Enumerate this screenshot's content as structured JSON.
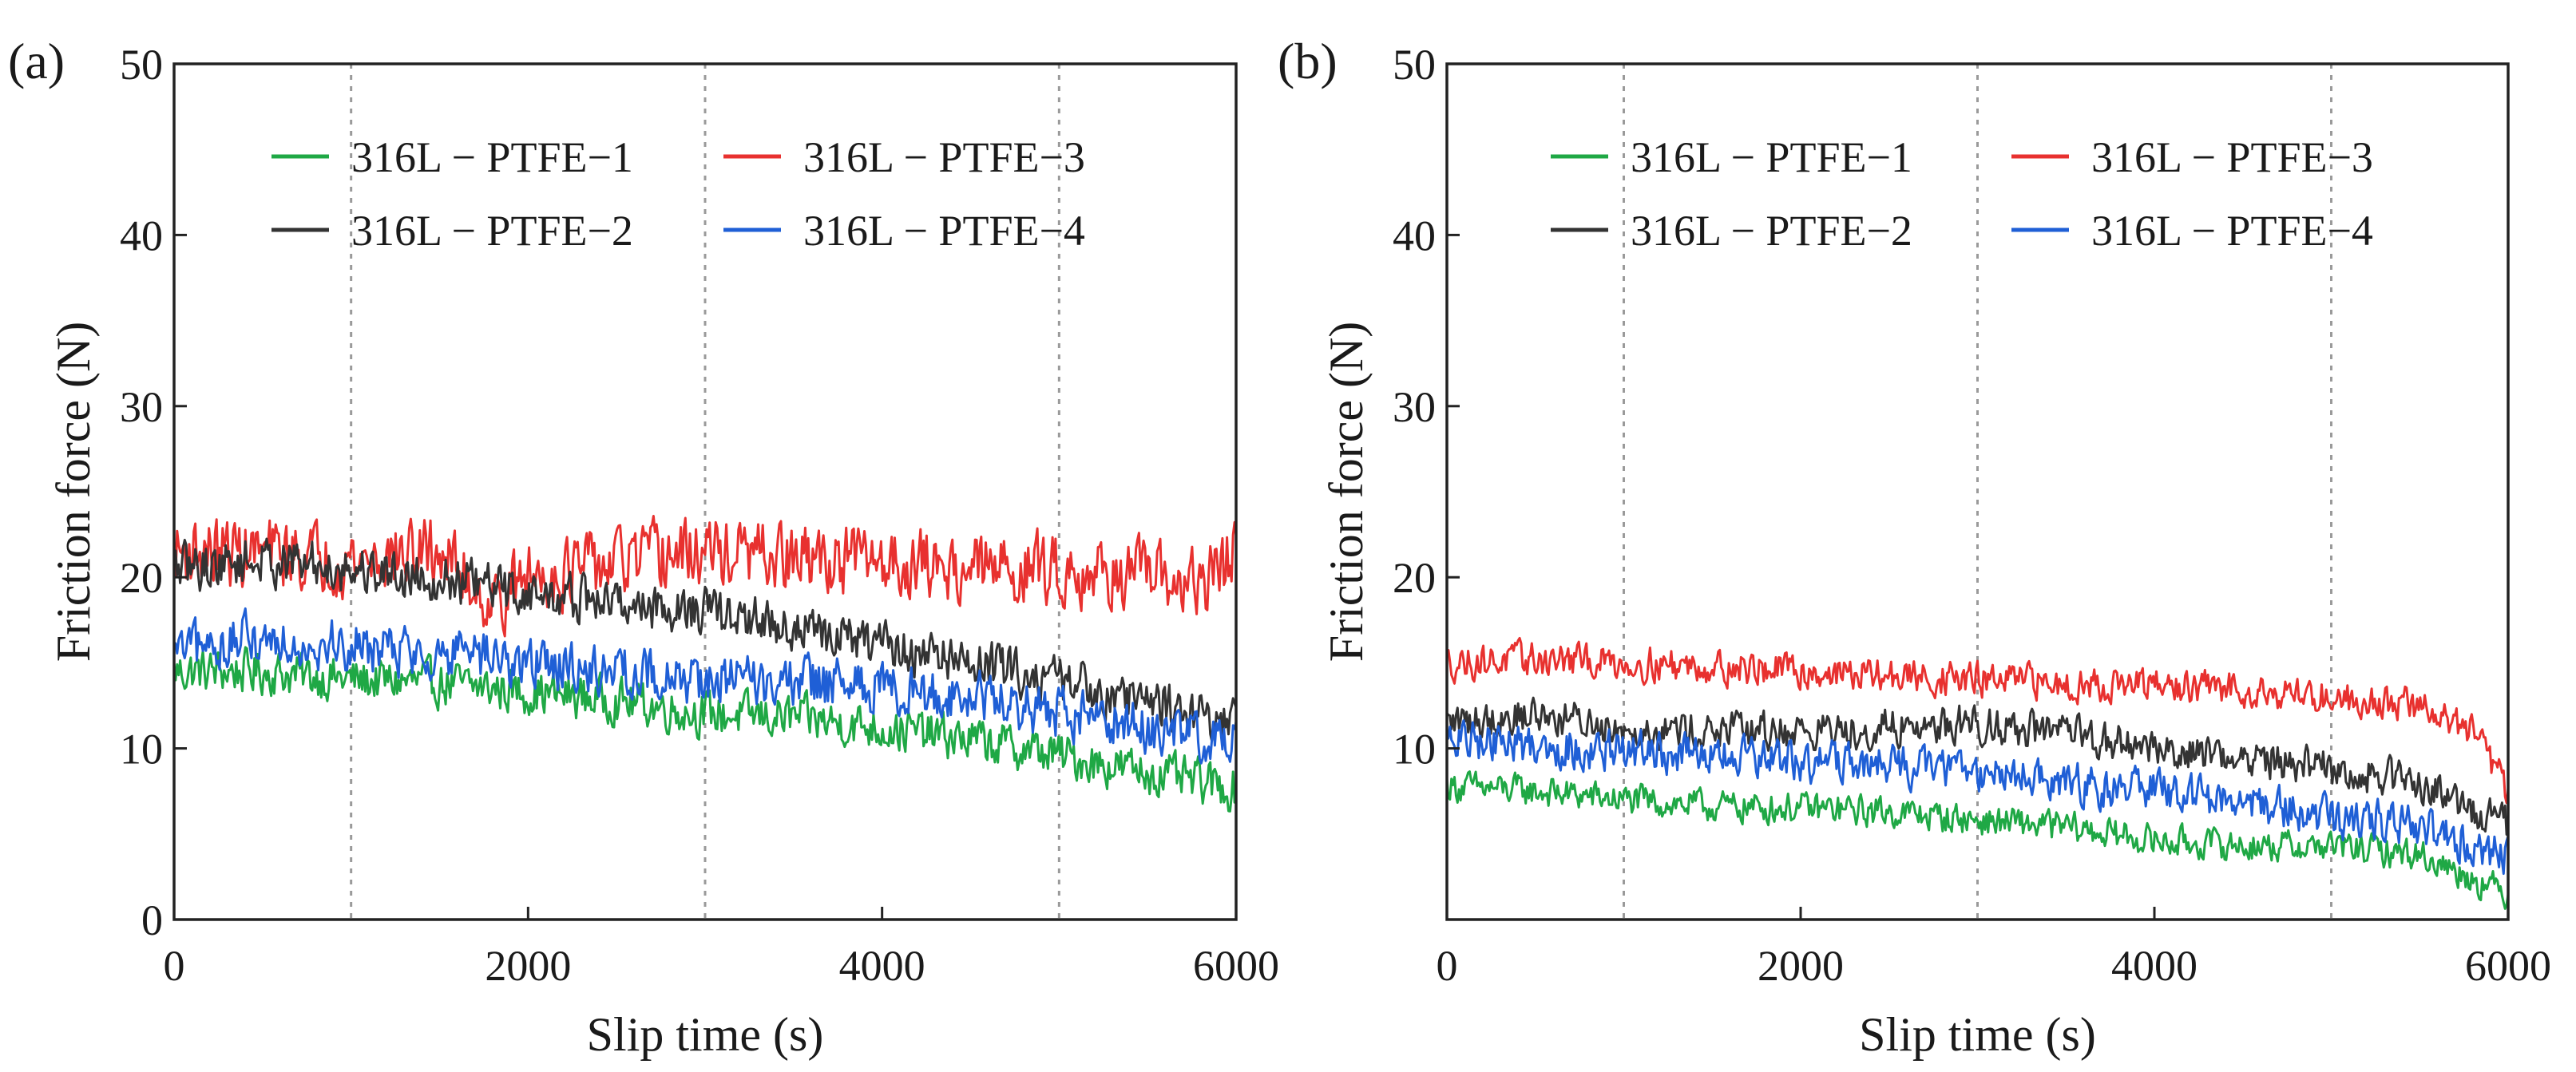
{
  "chart_data": [
    {
      "panel_label": "(a)",
      "type": "line",
      "xlabel": "Slip time (s)",
      "ylabel": "Friction force (N)",
      "xlim": [
        0,
        6000
      ],
      "ylim": [
        0,
        50
      ],
      "xticks": [
        0,
        2000,
        4000,
        6000
      ],
      "yticks": [
        0,
        10,
        20,
        30,
        40,
        50
      ],
      "grid_x": [
        1000,
        3000,
        5000
      ],
      "legend_position": "top",
      "series": [
        {
          "name": "316L − PTFE−1",
          "color": "#1fa845",
          "x": [
            0,
            500,
            1000,
            1500,
            2000,
            2500,
            3000,
            3500,
            4000,
            4500,
            5000,
            5500,
            6000
          ],
          "y": [
            14.5,
            14.5,
            14.0,
            13.8,
            13.3,
            12.8,
            12.0,
            11.8,
            11.2,
            10.5,
            9.6,
            8.6,
            7.6
          ],
          "noise": 1.3
        },
        {
          "name": "316L − PTFE−3",
          "color": "#e8312f",
          "x": [
            0,
            500,
            1000,
            1500,
            1800,
            2000,
            2500,
            3000,
            3500,
            4000,
            4500,
            5000,
            5500,
            5800,
            6000
          ],
          "y": [
            21.5,
            21.5,
            21.0,
            21.5,
            18.5,
            20.0,
            20.8,
            21.5,
            21.0,
            21.0,
            20.5,
            20.5,
            20.0,
            19.5,
            21.5
          ],
          "noise": 2.0
        },
        {
          "name": "316L − PTFE−2",
          "color": "#333333",
          "x": [
            0,
            500,
            1000,
            1500,
            2000,
            2500,
            3000,
            3500,
            4000,
            4500,
            5000,
            5500,
            6000
          ],
          "y": [
            20.5,
            21.0,
            20.5,
            20.0,
            19.0,
            18.5,
            18.0,
            17.0,
            16.0,
            15.0,
            14.0,
            12.8,
            11.5
          ],
          "noise": 1.4
        },
        {
          "name": "316L − PTFE−4",
          "color": "#1f5fd6",
          "x": [
            0,
            500,
            1000,
            1500,
            2000,
            2500,
            3000,
            3500,
            4000,
            4500,
            5000,
            5500,
            6000
          ],
          "y": [
            15.5,
            16.5,
            16.0,
            15.5,
            15.0,
            14.5,
            14.0,
            13.8,
            13.5,
            13.0,
            12.0,
            11.2,
            10.5
          ],
          "noise": 1.5
        }
      ]
    },
    {
      "panel_label": "(b)",
      "type": "line",
      "xlabel": "Slip time (s)",
      "ylabel": "Friction force (N)",
      "xlim": [
        0,
        6000
      ],
      "ylim": [
        0,
        50
      ],
      "xticks": [
        0,
        2000,
        4000,
        6000
      ],
      "yticks": [
        10,
        20,
        30,
        40,
        50
      ],
      "grid_x": [
        1000,
        3000,
        5000
      ],
      "legend_position": "top",
      "series": [
        {
          "name": "316L − PTFE−1",
          "color": "#1fa845",
          "x": [
            0,
            500,
            1000,
            1500,
            2000,
            2500,
            3000,
            3500,
            4000,
            4500,
            5000,
            5500,
            6000
          ],
          "y": [
            7.8,
            7.5,
            7.0,
            6.6,
            6.5,
            6.3,
            5.8,
            5.4,
            4.6,
            4.3,
            4.3,
            3.8,
            1.5
          ],
          "noise": 0.9
        },
        {
          "name": "316L − PTFE−3",
          "color": "#e8312f",
          "x": [
            0,
            500,
            1000,
            1500,
            2000,
            2500,
            3000,
            3500,
            4000,
            4500,
            5000,
            5500,
            5800,
            6000
          ],
          "y": [
            15.0,
            15.2,
            15.0,
            14.8,
            14.5,
            14.2,
            14.0,
            13.8,
            13.6,
            13.5,
            13.0,
            12.5,
            11.0,
            7.5
          ],
          "noise": 1.0
        },
        {
          "name": "316L − PTFE−2",
          "color": "#333333",
          "x": [
            0,
            500,
            1000,
            1500,
            2000,
            2500,
            3000,
            3500,
            4000,
            4500,
            5000,
            5500,
            6000
          ],
          "y": [
            11.5,
            12.0,
            11.2,
            11.0,
            11.0,
            11.2,
            11.5,
            10.8,
            10.0,
            9.5,
            8.8,
            8.0,
            5.5
          ],
          "noise": 1.1
        },
        {
          "name": "316L − PTFE−4",
          "color": "#1f5fd6",
          "x": [
            0,
            500,
            1000,
            1500,
            2000,
            2500,
            3000,
            3500,
            4000,
            4500,
            5000,
            5500,
            6000
          ],
          "y": [
            10.5,
            10.2,
            9.8,
            9.5,
            9.2,
            9.0,
            8.8,
            8.0,
            7.5,
            6.8,
            6.0,
            5.5,
            3.5
          ],
          "noise": 1.2
        }
      ]
    }
  ]
}
